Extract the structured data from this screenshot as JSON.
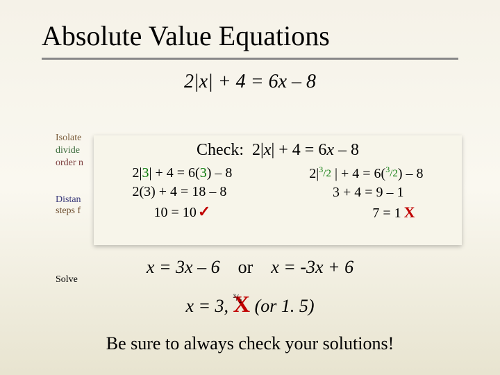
{
  "title": "Absolute Value Equations",
  "topEquation": {
    "lhs": "2|x| + 4",
    "rhs": "6x – 8"
  },
  "leftHints": {
    "isolate": "Isolate",
    "divide": "divide",
    "order": "order n",
    "distan": "Distan",
    "steps": "steps f",
    "solve": "Solve"
  },
  "checkBox": {
    "title": "Check:  2|x| + 4 = 6x – 8",
    "col1": {
      "line1_pre": "2|",
      "line1_val": "3",
      "line1_post": "| + 4 = 6(",
      "line1_val2": "3",
      "line1_end": ") – 8",
      "line2": "2(3) + 4 = 18 – 8",
      "line3": "10 = 10"
    },
    "col2": {
      "line1_pre": "2|",
      "line1_frac_num": "3",
      "line1_frac_den": "2",
      "line1_mid": "| + 4 = 6(",
      "line1_end": ") – 8",
      "line2": "3 + 4 = 9 – 1",
      "line3": "7 = 1"
    }
  },
  "solveLine1": {
    "left": "x = 3x – 6",
    "or": "or",
    "right": "x = -3x + 6"
  },
  "solveLine2": {
    "pre": "x = 3,",
    "hidden_sub": "3/2",
    "post": " (or 1. 5)"
  },
  "bottomNote": "Be sure to always check your solutions!",
  "colors": {
    "background_top": "#f5f2e8",
    "background_bottom": "#e8e4d0",
    "box_bg": "#f7f5ea",
    "accent_green": "#0a7a0a",
    "accent_red": "#c00000",
    "underline": "#888888"
  }
}
